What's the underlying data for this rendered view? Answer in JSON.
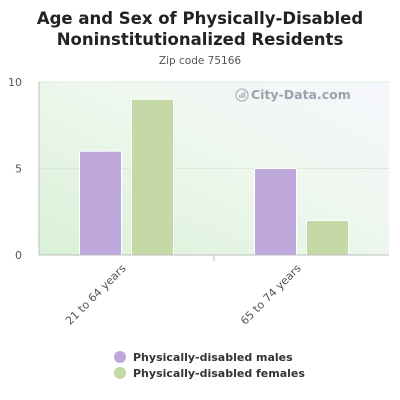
{
  "chart_data": {
    "type": "bar",
    "title": "Age and Sex of Physically-Disabled Noninstitutionalized Residents",
    "subtitle": "Zip code 75166",
    "categories": [
      "21 to 64 years",
      "65 to 74 years"
    ],
    "series": [
      {
        "name": "Physically-disabled males",
        "values": [
          6,
          5
        ],
        "color": "#bfa8db"
      },
      {
        "name": "Physically-disabled females",
        "values": [
          9,
          2
        ],
        "color": "#c5d9a6"
      }
    ],
    "ylim": [
      0,
      10
    ],
    "yticks": [
      0,
      5,
      10
    ],
    "grid": true,
    "legend_position": "bottom"
  },
  "watermark": {
    "text": "City-Data.com",
    "icon": "city-data-logo-icon"
  }
}
